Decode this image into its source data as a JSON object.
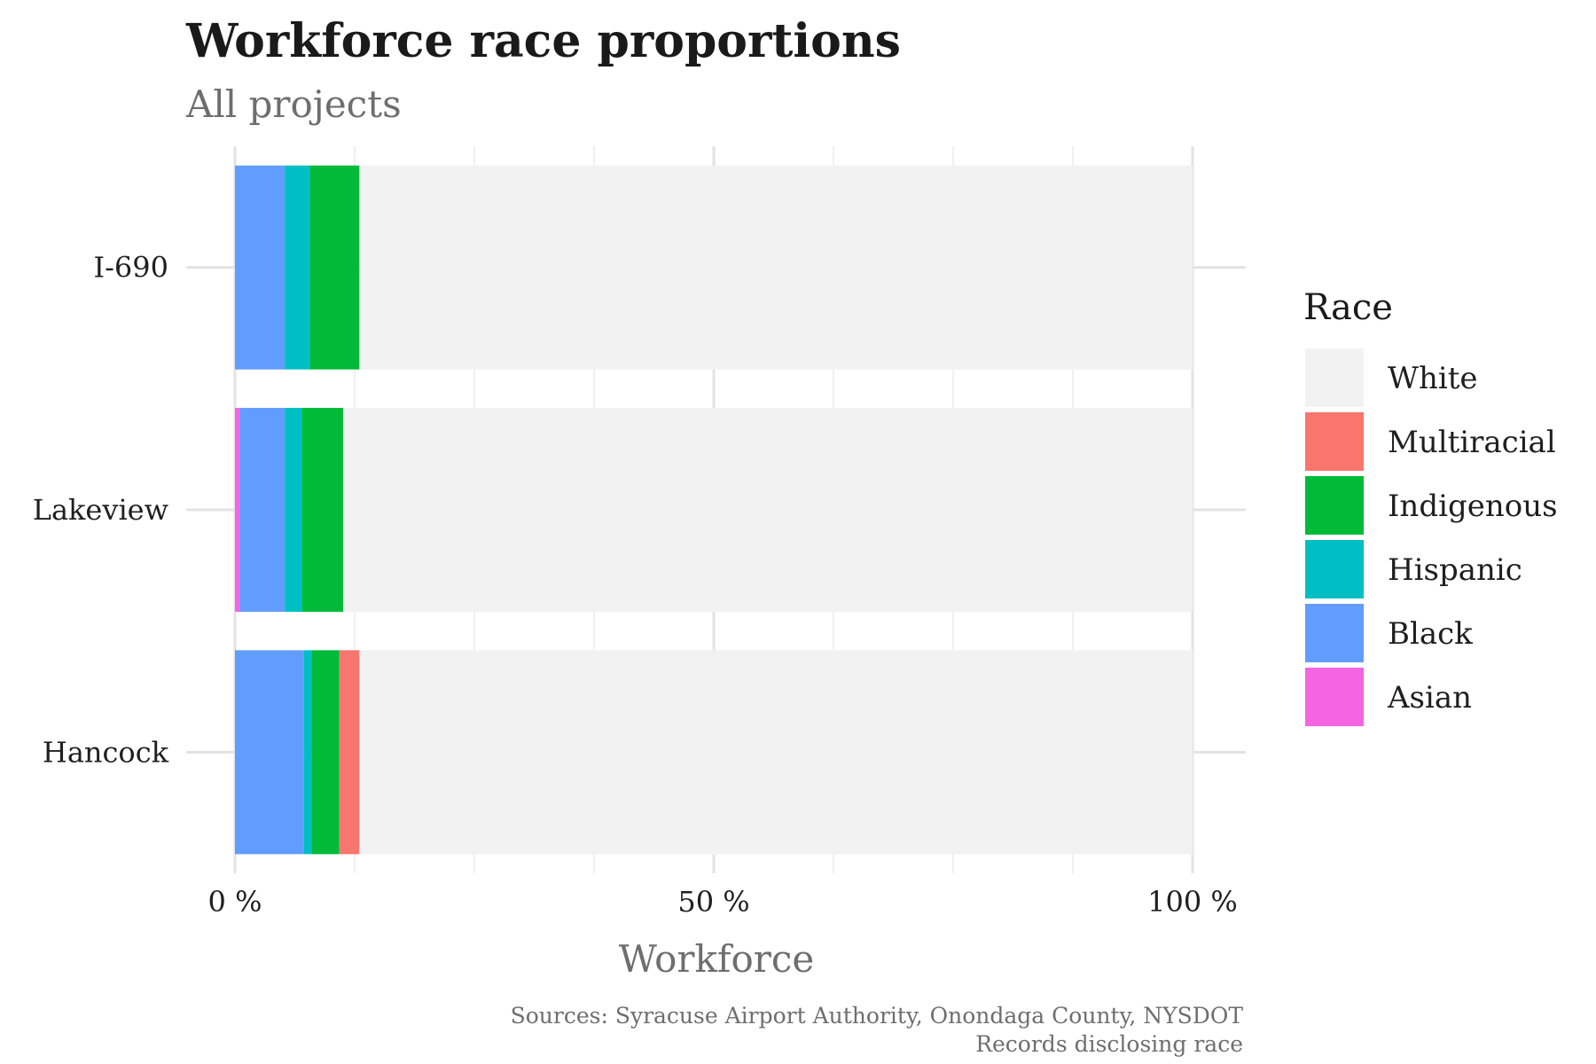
{
  "chart_data": {
    "type": "bar",
    "orientation": "horizontal",
    "stacked": true,
    "title": "Workforce race proportions",
    "subtitle": "All projects",
    "xlabel": "Workforce",
    "ylabel": "",
    "xlim": [
      0,
      100
    ],
    "x_ticks": [
      0,
      50,
      100
    ],
    "x_tick_labels": [
      "0 %",
      "50 %",
      "100 %"
    ],
    "grid": true,
    "categories": [
      "I-690",
      "Lakeview",
      "Hancock"
    ],
    "legend": {
      "title": "Race",
      "position": "right"
    },
    "series": [
      {
        "name": "Asian",
        "color": "#F564E3",
        "values": [
          0,
          0.5,
          0
        ]
      },
      {
        "name": "Black",
        "color": "#619CFF",
        "values": [
          5.2,
          4.7,
          7.2
        ]
      },
      {
        "name": "Hispanic",
        "color": "#00BFC4",
        "values": [
          2.6,
          1.8,
          0.8
        ]
      },
      {
        "name": "Indigenous",
        "color": "#00BA38",
        "values": [
          5.2,
          4.3,
          2.9
        ]
      },
      {
        "name": "Multiracial",
        "color": "#F8766D",
        "values": [
          0,
          0,
          2.1
        ]
      },
      {
        "name": "White",
        "color": "#F2F2F2",
        "values": [
          87.0,
          88.7,
          87.0
        ]
      }
    ],
    "caption": [
      "Sources: Syracuse Airport Authority, Onondaga County, NYSDOT",
      "Records disclosing race"
    ]
  }
}
